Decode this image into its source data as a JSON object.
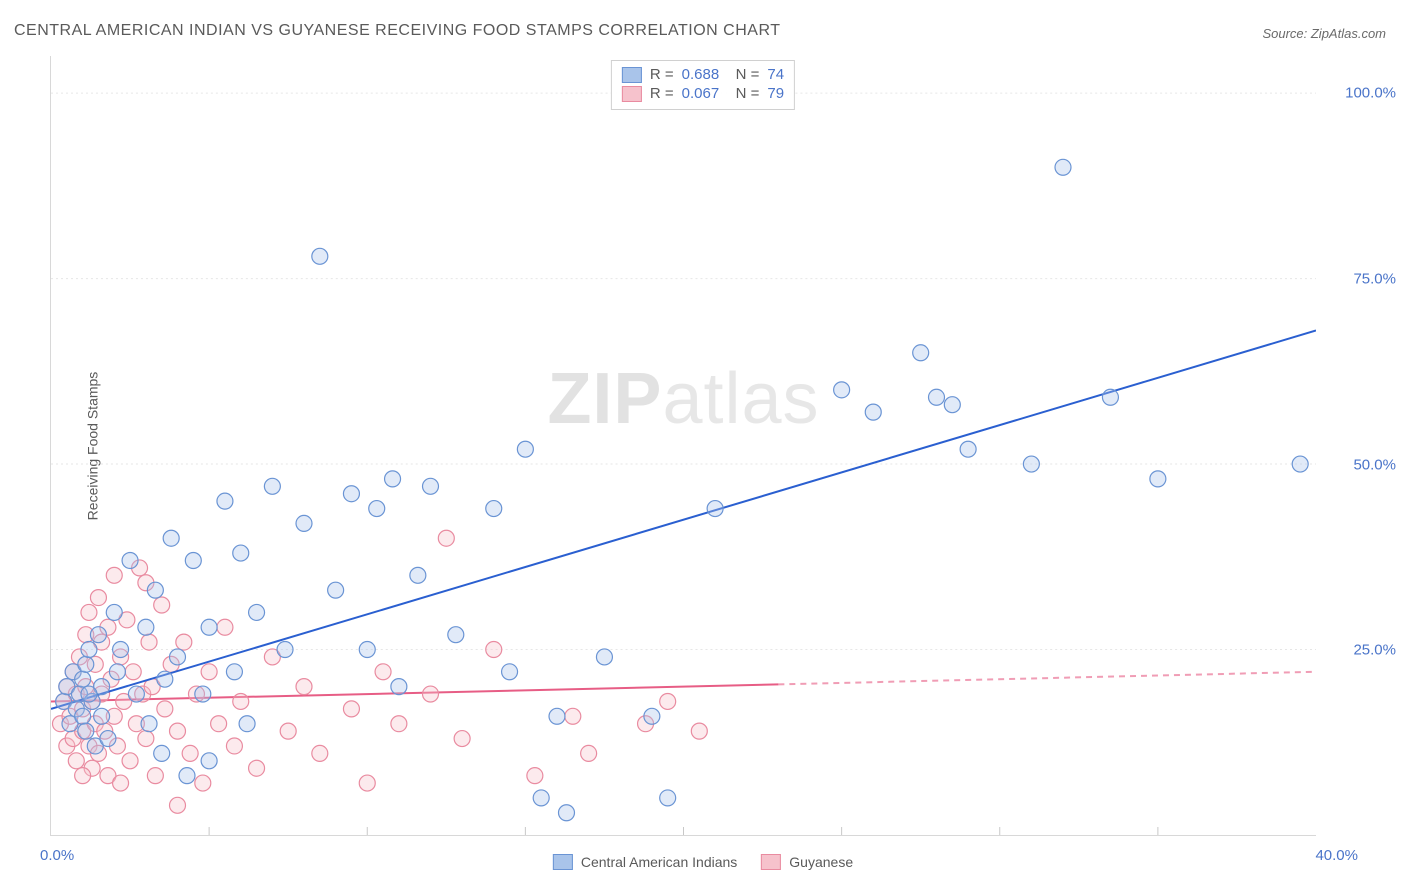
{
  "title": "CENTRAL AMERICAN INDIAN VS GUYANESE RECEIVING FOOD STAMPS CORRELATION CHART",
  "source_label": "Source: ZipAtlas.com",
  "y_axis_label": "Receiving Food Stamps",
  "watermark_bold": "ZIP",
  "watermark_light": "atlas",
  "chart": {
    "type": "scatter",
    "background_color": "#ffffff",
    "grid_color": "#e6e6e6",
    "axis_color": "#d8d8d8",
    "tick_label_color": "#4a74c9",
    "tick_fontsize": 15,
    "xlim": [
      0,
      40
    ],
    "ylim": [
      0,
      105
    ],
    "y_ticks": [
      25,
      50,
      75,
      100
    ],
    "y_tick_labels": [
      "25.0%",
      "50.0%",
      "75.0%",
      "100.0%"
    ],
    "x_tick_min_label": "0.0%",
    "x_tick_max_label": "40.0%",
    "x_minor_tick_step": 5,
    "marker_radius": 8,
    "marker_stroke_width": 1.2,
    "marker_fill_opacity": 0.35,
    "line_width": 2
  },
  "series": [
    {
      "id": "cai",
      "label": "Central American Indians",
      "color_fill": "#a9c4ea",
      "color_stroke": "#6a94d4",
      "line_color": "#2a5fd0",
      "r_label": "R =",
      "r_value": "0.688",
      "n_label": "N =",
      "n_value": "74",
      "regression": {
        "x1": 0,
        "y1": 17,
        "x2": 40,
        "y2": 68,
        "dashed_from_x": null
      },
      "points": [
        [
          0.4,
          18
        ],
        [
          0.5,
          20
        ],
        [
          0.6,
          15
        ],
        [
          0.7,
          22
        ],
        [
          0.8,
          17
        ],
        [
          0.9,
          19
        ],
        [
          1.0,
          16
        ],
        [
          1.0,
          21
        ],
        [
          1.1,
          14
        ],
        [
          1.1,
          23
        ],
        [
          1.2,
          25
        ],
        [
          1.3,
          18
        ],
        [
          1.4,
          12
        ],
        [
          1.5,
          27
        ],
        [
          1.6,
          20
        ],
        [
          1.8,
          13
        ],
        [
          2.0,
          30
        ],
        [
          2.1,
          22
        ],
        [
          2.5,
          37
        ],
        [
          2.7,
          19
        ],
        [
          3.0,
          28
        ],
        [
          3.1,
          15
        ],
        [
          3.3,
          33
        ],
        [
          3.5,
          11
        ],
        [
          3.8,
          40
        ],
        [
          4.0,
          24
        ],
        [
          4.5,
          37
        ],
        [
          4.8,
          19
        ],
        [
          5.0,
          28
        ],
        [
          5.0,
          10
        ],
        [
          5.5,
          45
        ],
        [
          5.8,
          22
        ],
        [
          6.0,
          38
        ],
        [
          6.2,
          15
        ],
        [
          6.5,
          30
        ],
        [
          7.0,
          47
        ],
        [
          7.4,
          25
        ],
        [
          8.0,
          42
        ],
        [
          8.5,
          78
        ],
        [
          9.0,
          33
        ],
        [
          9.5,
          46
        ],
        [
          10.0,
          25
        ],
        [
          10.3,
          44
        ],
        [
          10.8,
          48
        ],
        [
          11.0,
          20
        ],
        [
          11.6,
          35
        ],
        [
          12.0,
          47
        ],
        [
          12.8,
          27
        ],
        [
          14.0,
          44
        ],
        [
          14.5,
          22
        ],
        [
          15.0,
          52
        ],
        [
          15.5,
          5
        ],
        [
          16.0,
          16
        ],
        [
          16.3,
          3
        ],
        [
          17.5,
          24
        ],
        [
          19.0,
          16
        ],
        [
          19.5,
          5
        ],
        [
          21.0,
          44
        ],
        [
          25.0,
          60
        ],
        [
          26.0,
          57
        ],
        [
          27.5,
          65
        ],
        [
          28.0,
          59
        ],
        [
          28.5,
          58
        ],
        [
          29.0,
          52
        ],
        [
          31.0,
          50
        ],
        [
          32.0,
          90
        ],
        [
          33.5,
          59
        ],
        [
          35.0,
          48
        ],
        [
          39.5,
          50
        ],
        [
          1.2,
          19
        ],
        [
          1.6,
          16
        ],
        [
          2.2,
          25
        ],
        [
          3.6,
          21
        ],
        [
          4.3,
          8
        ]
      ]
    },
    {
      "id": "guy",
      "label": "Guyanese",
      "color_fill": "#f6c2cc",
      "color_stroke": "#e98ba0",
      "line_color": "#e75d85",
      "r_label": "R =",
      "r_value": "0.067",
      "n_label": "N =",
      "n_value": "79",
      "regression": {
        "x1": 0,
        "y1": 18,
        "x2": 40,
        "y2": 22,
        "dashed_from_x": 23
      },
      "points": [
        [
          0.3,
          15
        ],
        [
          0.4,
          18
        ],
        [
          0.5,
          12
        ],
        [
          0.5,
          20
        ],
        [
          0.6,
          16
        ],
        [
          0.7,
          22
        ],
        [
          0.7,
          13
        ],
        [
          0.8,
          19
        ],
        [
          0.8,
          10
        ],
        [
          0.9,
          24
        ],
        [
          1.0,
          17
        ],
        [
          1.0,
          14
        ],
        [
          1.1,
          27
        ],
        [
          1.1,
          20
        ],
        [
          1.2,
          12
        ],
        [
          1.2,
          30
        ],
        [
          1.3,
          18
        ],
        [
          1.3,
          9
        ],
        [
          1.4,
          23
        ],
        [
          1.4,
          15
        ],
        [
          1.5,
          32
        ],
        [
          1.5,
          11
        ],
        [
          1.6,
          26
        ],
        [
          1.6,
          19
        ],
        [
          1.7,
          14
        ],
        [
          1.8,
          28
        ],
        [
          1.8,
          8
        ],
        [
          1.9,
          21
        ],
        [
          2.0,
          35
        ],
        [
          2.0,
          16
        ],
        [
          2.1,
          12
        ],
        [
          2.2,
          24
        ],
        [
          2.3,
          18
        ],
        [
          2.4,
          29
        ],
        [
          2.5,
          10
        ],
        [
          2.6,
          22
        ],
        [
          2.7,
          15
        ],
        [
          2.8,
          36
        ],
        [
          2.9,
          19
        ],
        [
          3.0,
          13
        ],
        [
          3.1,
          26
        ],
        [
          3.2,
          20
        ],
        [
          3.3,
          8
        ],
        [
          3.5,
          31
        ],
        [
          3.6,
          17
        ],
        [
          3.8,
          23
        ],
        [
          4.0,
          14
        ],
        [
          4.2,
          26
        ],
        [
          4.4,
          11
        ],
        [
          4.6,
          19
        ],
        [
          4.8,
          7
        ],
        [
          5.0,
          22
        ],
        [
          5.3,
          15
        ],
        [
          5.5,
          28
        ],
        [
          5.8,
          12
        ],
        [
          6.0,
          18
        ],
        [
          6.5,
          9
        ],
        [
          7.0,
          24
        ],
        [
          7.5,
          14
        ],
        [
          8.0,
          20
        ],
        [
          8.5,
          11
        ],
        [
          9.5,
          17
        ],
        [
          10.0,
          7
        ],
        [
          10.5,
          22
        ],
        [
          11.0,
          15
        ],
        [
          12.0,
          19
        ],
        [
          12.5,
          40
        ],
        [
          13.0,
          13
        ],
        [
          14.0,
          25
        ],
        [
          15.3,
          8
        ],
        [
          16.5,
          16
        ],
        [
          17.0,
          11
        ],
        [
          18.8,
          15
        ],
        [
          19.5,
          18
        ],
        [
          20.5,
          14
        ],
        [
          1.0,
          8
        ],
        [
          2.2,
          7
        ],
        [
          3.0,
          34
        ],
        [
          4.0,
          4
        ]
      ]
    }
  ],
  "stats_legend_order": [
    "cai",
    "guy"
  ],
  "bottom_legend_order": [
    "cai",
    "guy"
  ]
}
